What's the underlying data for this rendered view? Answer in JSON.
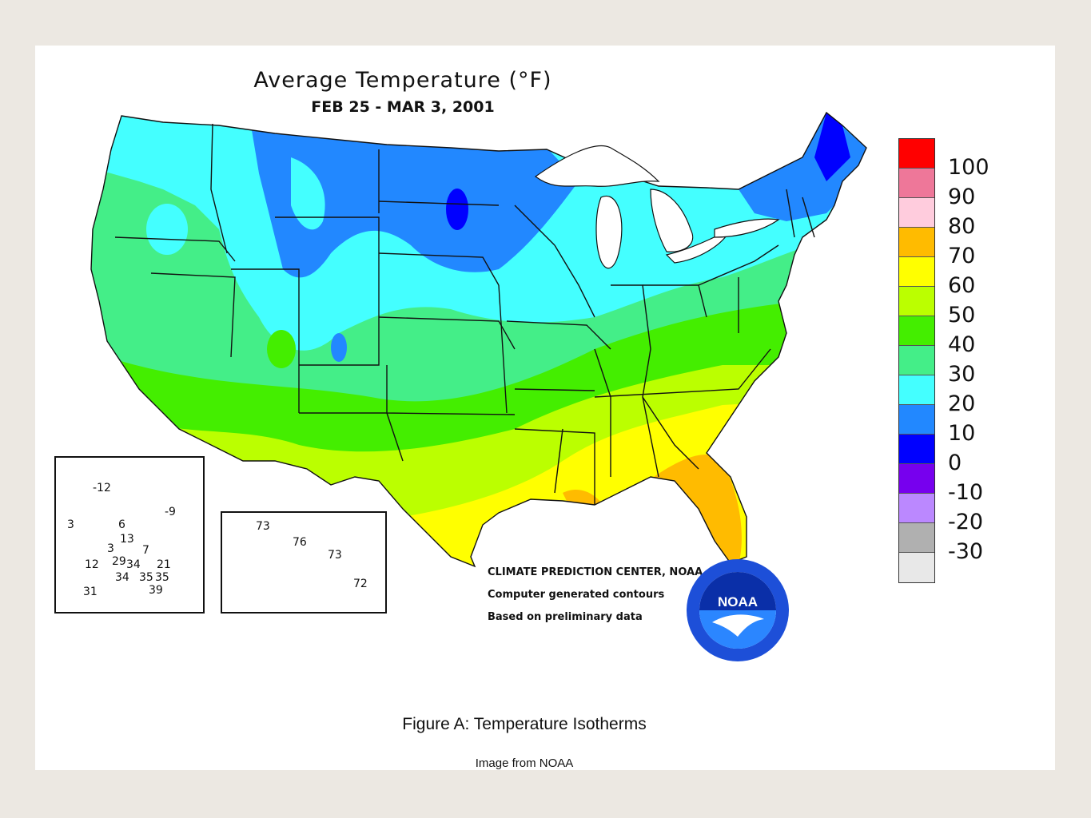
{
  "map": {
    "title": "Average Temperature (°F)",
    "subtitle": "FEB 25 - MAR 3, 2001",
    "credits": [
      "CLIMATE PREDICTION CENTER, NOAA",
      "Computer generated contours",
      "Based on preliminary data"
    ],
    "logo_text": "NOAA",
    "caption": "Figure A: Temperature Isotherms",
    "source": "Image from NOAA"
  },
  "legend": {
    "labels": [
      "100",
      "90",
      "80",
      "70",
      "60",
      "50",
      "40",
      "30",
      "20",
      "10",
      "0",
      "-10",
      "-20",
      "-30"
    ],
    "colors": [
      "#ff0000",
      "#ee7799",
      "#ffccdd",
      "#ffbb00",
      "#ffff00",
      "#bbff00",
      "#44ee00",
      "#44ee88",
      "#44ffff",
      "#2288ff",
      "#0000ff",
      "#7700ee",
      "#bb88ff",
      "#b0b0b0",
      "#e8e8e8"
    ]
  },
  "alaska": {
    "values": [
      "-12",
      "-9",
      "3",
      "6",
      "13",
      "3",
      "7",
      "12",
      "29",
      "34",
      "21",
      "34",
      "35",
      "35",
      "39",
      "31"
    ]
  },
  "hawaii": {
    "values": [
      "73",
      "76",
      "73",
      "72"
    ]
  }
}
